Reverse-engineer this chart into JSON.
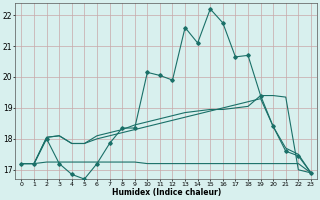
{
  "xlabel": "Humidex (Indice chaleur)",
  "xlim": [
    -0.5,
    23.5
  ],
  "ylim": [
    16.7,
    22.4
  ],
  "yticks": [
    17,
    18,
    19,
    20,
    21,
    22
  ],
  "xticks": [
    0,
    1,
    2,
    3,
    4,
    5,
    6,
    7,
    8,
    9,
    10,
    11,
    12,
    13,
    14,
    15,
    16,
    17,
    18,
    19,
    20,
    21,
    22,
    23
  ],
  "bg_color": "#d8f0ee",
  "grid_color": "#c8a8a8",
  "line_color": "#1a7068",
  "line1_x": [
    0,
    1,
    2,
    3,
    4,
    5,
    6,
    7,
    8,
    9,
    10,
    11,
    12,
    13,
    14,
    15,
    16,
    17,
    18,
    19,
    20,
    21,
    22,
    23
  ],
  "line1_y": [
    17.2,
    17.2,
    18.0,
    17.2,
    16.85,
    16.7,
    17.2,
    17.85,
    18.35,
    18.35,
    20.15,
    20.05,
    19.9,
    21.6,
    21.1,
    22.2,
    21.75,
    20.65,
    20.7,
    19.4,
    18.4,
    17.6,
    17.45,
    16.9
  ],
  "line2_x": [
    0,
    1,
    2,
    3,
    4,
    5,
    6,
    7,
    8,
    9,
    10,
    11,
    12,
    13,
    14,
    15,
    16,
    17,
    18,
    19,
    20,
    21,
    22,
    23
  ],
  "line2_y": [
    17.2,
    17.2,
    18.05,
    18.1,
    17.85,
    17.85,
    18.1,
    18.2,
    18.3,
    18.45,
    18.55,
    18.65,
    18.75,
    18.85,
    18.9,
    18.95,
    18.95,
    19.0,
    19.05,
    19.4,
    19.4,
    19.35,
    17.0,
    16.9
  ],
  "line3_x": [
    0,
    1,
    2,
    3,
    4,
    5,
    6,
    7,
    8,
    9,
    10,
    11,
    12,
    13,
    14,
    15,
    16,
    17,
    18,
    19,
    20,
    21,
    22,
    23
  ],
  "line3_y": [
    17.2,
    17.2,
    17.25,
    17.25,
    17.25,
    17.25,
    17.25,
    17.25,
    17.25,
    17.25,
    17.2,
    17.2,
    17.2,
    17.2,
    17.2,
    17.2,
    17.2,
    17.2,
    17.2,
    17.2,
    17.2,
    17.2,
    17.2,
    16.9
  ],
  "line4_x": [
    0,
    1,
    2,
    3,
    4,
    5,
    6,
    7,
    8,
    9,
    10,
    11,
    12,
    13,
    14,
    15,
    16,
    17,
    18,
    19,
    20,
    21,
    22,
    23
  ],
  "line4_y": [
    17.2,
    17.2,
    18.05,
    18.1,
    17.85,
    17.85,
    18.0,
    18.1,
    18.2,
    18.3,
    18.4,
    18.5,
    18.6,
    18.7,
    18.8,
    18.9,
    19.0,
    19.1,
    19.2,
    19.3,
    18.4,
    17.7,
    17.5,
    16.9
  ]
}
